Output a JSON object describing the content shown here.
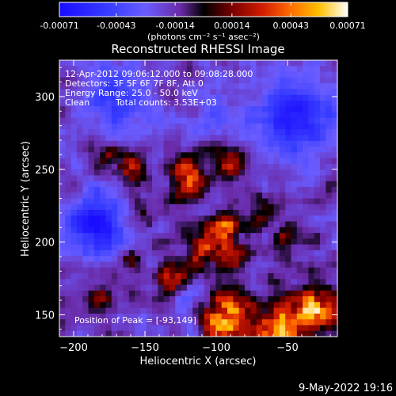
{
  "chart_data": {
    "type": "heatmap",
    "title": "Reconstructed RHESSI Image",
    "xlabel": "Heliocentric X (arcsec)",
    "ylabel": "Heliocentric Y (arcsec)",
    "xlim": [
      -210,
      -15
    ],
    "ylim": [
      135,
      325
    ],
    "x_ticks": [
      -200,
      -150,
      -100,
      -50
    ],
    "y_ticks": [
      150,
      200,
      250,
      300
    ],
    "colorbar": {
      "ticks": [
        -0.00071,
        -0.00043,
        -0.00014,
        0.00014,
        0.00043,
        0.00071
      ],
      "tick_labels": [
        "-0.00071",
        "-0.00043",
        "-0.00014",
        "0.00014",
        "0.00043",
        "0.00071"
      ],
      "unit_label": "(photons cm⁻² s⁻¹ asec⁻²)",
      "range": [
        -0.00071,
        0.00071
      ]
    },
    "annotations": {
      "line1": "12-Apr-2012 09:06:12.000 to 09:08:28.000",
      "line2": "Detectors: 3F 5F 6F 7F 8F, Att 0",
      "line3": "Energy Range: 25.0 - 50.0 keV",
      "line4_a": "Clean",
      "line4_b": "Total counts: 3.53E+03",
      "peak": "Position of Peak = [-93,149]"
    },
    "peak_position": [
      -93,
      149
    ],
    "grid": false
  },
  "footer": {
    "date": "9-May-2022 19:16"
  },
  "colors": {
    "background": "#000000",
    "text": "#ffffff"
  }
}
